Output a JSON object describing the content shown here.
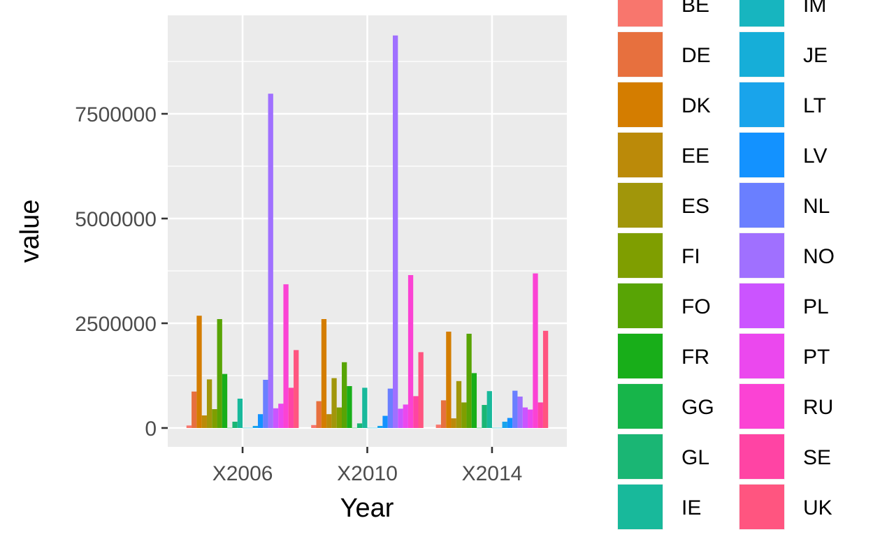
{
  "chart_data": {
    "type": "bar",
    "categories": [
      "X2006",
      "X2010",
      "X2014"
    ],
    "xlabel": "Year",
    "ylabel": "value",
    "yticks": [
      "0",
      "2500000",
      "5000000",
      "7500000"
    ],
    "ytick_values": [
      0,
      2500000,
      5000000,
      7500000
    ],
    "ylim": [
      -450000,
      9850000
    ],
    "grid": true,
    "legend_position": "right",
    "series": [
      {
        "name": "BE",
        "color": "#F8766D",
        "values": [
          60000,
          70000,
          80000
        ]
      },
      {
        "name": "DE",
        "color": "#E7703E",
        "values": [
          870000,
          640000,
          660000
        ]
      },
      {
        "name": "DK",
        "color": "#D47D00",
        "values": [
          2680000,
          2600000,
          2300000
        ]
      },
      {
        "name": "EE",
        "color": "#BB8A09",
        "values": [
          300000,
          330000,
          230000
        ]
      },
      {
        "name": "ES",
        "color": "#A1960A",
        "values": [
          1160000,
          1190000,
          1120000
        ]
      },
      {
        "name": "FI",
        "color": "#7F9E00",
        "values": [
          450000,
          490000,
          610000
        ]
      },
      {
        "name": "FO",
        "color": "#58A405",
        "values": [
          2600000,
          1570000,
          2250000
        ]
      },
      {
        "name": "FR",
        "color": "#18AE19",
        "values": [
          1290000,
          1000000,
          1310000
        ]
      },
      {
        "name": "GG",
        "color": "#17B54A",
        "values": [
          5000,
          5000,
          5000
        ]
      },
      {
        "name": "GL",
        "color": "#1AB674",
        "values": [
          150000,
          110000,
          550000
        ]
      },
      {
        "name": "IE",
        "color": "#18B99B",
        "values": [
          700000,
          960000,
          880000
        ]
      },
      {
        "name": "IM",
        "color": "#17B5BF",
        "values": [
          5000,
          5000,
          5000
        ]
      },
      {
        "name": "JE",
        "color": "#16AED8",
        "values": [
          5000,
          5000,
          5000
        ]
      },
      {
        "name": "LT",
        "color": "#19A4EB",
        "values": [
          50000,
          50000,
          150000
        ]
      },
      {
        "name": "LV",
        "color": "#1392FF",
        "values": [
          330000,
          290000,
          240000
        ]
      },
      {
        "name": "NL",
        "color": "#6A7FFF",
        "values": [
          1150000,
          940000,
          890000
        ]
      },
      {
        "name": "NO",
        "color": "#A070FF",
        "values": [
          7980000,
          9370000,
          750000
        ]
      },
      {
        "name": "PL",
        "color": "#CB54FF",
        "values": [
          470000,
          460000,
          490000
        ]
      },
      {
        "name": "PT",
        "color": "#EB48EE",
        "values": [
          580000,
          560000,
          440000
        ]
      },
      {
        "name": "RU",
        "color": "#FB43D4",
        "values": [
          3430000,
          3650000,
          3690000
        ]
      },
      {
        "name": "SE",
        "color": "#FF44A4",
        "values": [
          960000,
          760000,
          610000
        ]
      },
      {
        "name": "UK",
        "color": "#FF5580",
        "values": [
          1860000,
          1810000,
          2320000
        ]
      }
    ]
  }
}
